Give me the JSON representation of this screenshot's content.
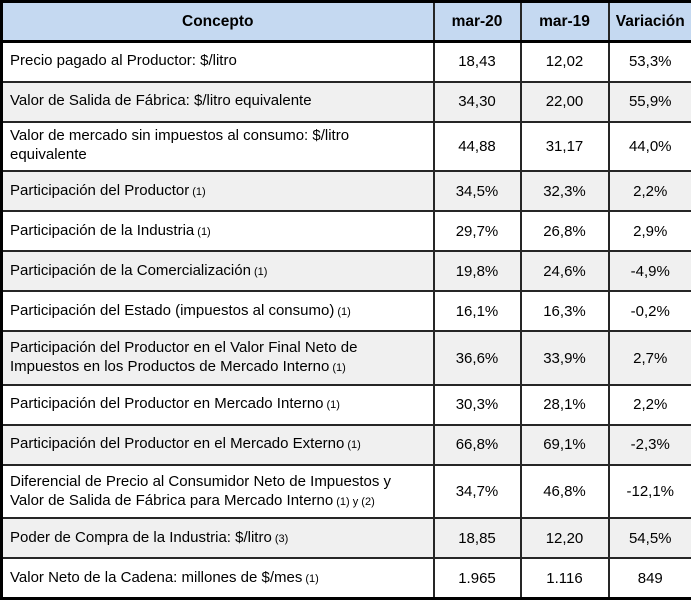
{
  "colors": {
    "header_bg": "#C5D9F1",
    "row_alt_bg": "#F0F0F0",
    "row_bg": "#FFFFFF",
    "border_outer": "#000000",
    "border_inner": "#262626"
  },
  "chart_data": {
    "type": "table",
    "columns": [
      "Concepto",
      "mar-20",
      "mar-19",
      "Variación"
    ],
    "rows": [
      {
        "concepto": "Precio pagado al Productor: $/litro",
        "note": "",
        "mar20": "18,43",
        "mar19": "12,02",
        "variacion": "53,3%"
      },
      {
        "concepto": "Valor de Salida de Fábrica: $/litro equivalente",
        "note": "",
        "mar20": "34,30",
        "mar19": "22,00",
        "variacion": "55,9%"
      },
      {
        "concepto": "Valor de mercado sin impuestos al consumo: $/litro equivalente",
        "note": "",
        "mar20": "44,88",
        "mar19": "31,17",
        "variacion": "44,0%"
      },
      {
        "concepto": "Participación del Productor",
        "note": "(1)",
        "mar20": "34,5%",
        "mar19": "32,3%",
        "variacion": "2,2%"
      },
      {
        "concepto": "Participación de la Industria",
        "note": "(1)",
        "mar20": "29,7%",
        "mar19": "26,8%",
        "variacion": "2,9%"
      },
      {
        "concepto": "Participación de la Comercialización",
        "note": "(1)",
        "mar20": "19,8%",
        "mar19": "24,6%",
        "variacion": "-4,9%"
      },
      {
        "concepto": "Participación del Estado (impuestos al consumo)",
        "note": "(1)",
        "mar20": "16,1%",
        "mar19": "16,3%",
        "variacion": "-0,2%"
      },
      {
        "concepto": "Participación del Productor en el Valor Final Neto de Impuestos en los Productos de Mercado Interno",
        "note": "(1)",
        "mar20": "36,6%",
        "mar19": "33,9%",
        "variacion": "2,7%"
      },
      {
        "concepto": "Participación del Productor en Mercado Interno",
        "note": "(1)",
        "mar20": "30,3%",
        "mar19": "28,1%",
        "variacion": "2,2%"
      },
      {
        "concepto": "Participación del Productor en el Mercado Externo",
        "note": "(1)",
        "mar20": "66,8%",
        "mar19": "69,1%",
        "variacion": "-2,3%"
      },
      {
        "concepto": "Diferencial de Precio al Consumidor Neto de Impuestos y Valor de Salida de Fábrica para Mercado Interno",
        "note": "(1) y (2)",
        "mar20": "34,7%",
        "mar19": "46,8%",
        "variacion": "-12,1%"
      },
      {
        "concepto": "Poder de Compra de la Industria: $/litro",
        "note": "(3)",
        "mar20": "18,85",
        "mar19": "12,20",
        "variacion": "54,5%"
      },
      {
        "concepto": "Valor Neto de la Cadena: millones de $/mes",
        "note": "(1)",
        "mar20": "1.965",
        "mar19": "1.116",
        "variacion": "849"
      }
    ],
    "tall_row_indices": [
      7,
      10
    ],
    "title": "",
    "legend": "none",
    "grid": "full-borders"
  }
}
